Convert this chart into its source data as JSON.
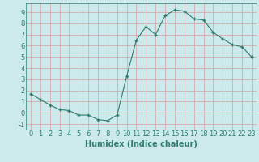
{
  "x": [
    0,
    1,
    2,
    3,
    4,
    5,
    6,
    7,
    8,
    9,
    10,
    11,
    12,
    13,
    14,
    15,
    16,
    17,
    18,
    19,
    20,
    21,
    22,
    23
  ],
  "y": [
    1.7,
    1.2,
    0.7,
    0.3,
    0.2,
    -0.2,
    -0.2,
    -0.6,
    -0.7,
    -0.2,
    3.3,
    6.5,
    7.7,
    7.0,
    8.7,
    9.2,
    9.1,
    8.4,
    8.3,
    7.2,
    6.6,
    6.1,
    5.9,
    5.0
  ],
  "line_color": "#2e7d6e",
  "marker": "+",
  "marker_size": 3,
  "bg_color": "#cce9ec",
  "grid_color": "#d4a0a0",
  "xlabel": "Humidex (Indice chaleur)",
  "xlim": [
    -0.5,
    23.5
  ],
  "ylim": [
    -1.5,
    9.8
  ],
  "yticks": [
    -1,
    0,
    1,
    2,
    3,
    4,
    5,
    6,
    7,
    8,
    9
  ],
  "xticks": [
    0,
    1,
    2,
    3,
    4,
    5,
    6,
    7,
    8,
    9,
    10,
    11,
    12,
    13,
    14,
    15,
    16,
    17,
    18,
    19,
    20,
    21,
    22,
    23
  ],
  "tick_fontsize": 6,
  "xlabel_fontsize": 7
}
